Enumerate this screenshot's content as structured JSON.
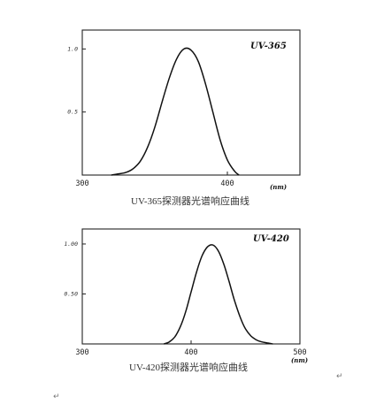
{
  "chart_data": [
    {
      "type": "line",
      "title": "UV-365",
      "xlabel": "(nm)",
      "ylabel": "",
      "xlim": [
        300,
        450
      ],
      "ylim": [
        0,
        1.15
      ],
      "x_ticks": [
        "300",
        "400"
      ],
      "y_ticks": [
        "1.0",
        "0.5"
      ],
      "grid": false,
      "series": [
        {
          "x": [
            320,
            325,
            330,
            335,
            340,
            345,
            350,
            355,
            360,
            365,
            370,
            375,
            380,
            385,
            390,
            395,
            400,
            405,
            408
          ],
          "values": [
            0.0,
            0.01,
            0.02,
            0.05,
            0.11,
            0.22,
            0.38,
            0.58,
            0.77,
            0.92,
            1.0,
            0.99,
            0.9,
            0.72,
            0.5,
            0.28,
            0.12,
            0.03,
            0.0
          ]
        }
      ],
      "caption": "UV-365探测器光谱响应曲线"
    },
    {
      "type": "line",
      "title": "UV-420",
      "xlabel": "(nm)",
      "ylabel": "",
      "xlim": [
        300,
        500
      ],
      "ylim": [
        0,
        1.15
      ],
      "x_ticks": [
        "300",
        "400",
        "500"
      ],
      "y_ticks": [
        "1.00",
        "0.50"
      ],
      "grid": false,
      "series": [
        {
          "x": [
            375,
            380,
            385,
            390,
            395,
            400,
            405,
            410,
            415,
            420,
            425,
            430,
            435,
            440,
            445,
            450,
            455,
            460,
            465,
            470,
            475
          ],
          "values": [
            0.0,
            0.02,
            0.07,
            0.17,
            0.32,
            0.52,
            0.72,
            0.88,
            0.97,
            0.99,
            0.93,
            0.8,
            0.62,
            0.43,
            0.27,
            0.15,
            0.08,
            0.04,
            0.02,
            0.01,
            0.0
          ]
        }
      ],
      "caption": "UV-420探测器光谱响应曲线"
    }
  ],
  "marks": {
    "return_symbol": "↵"
  }
}
